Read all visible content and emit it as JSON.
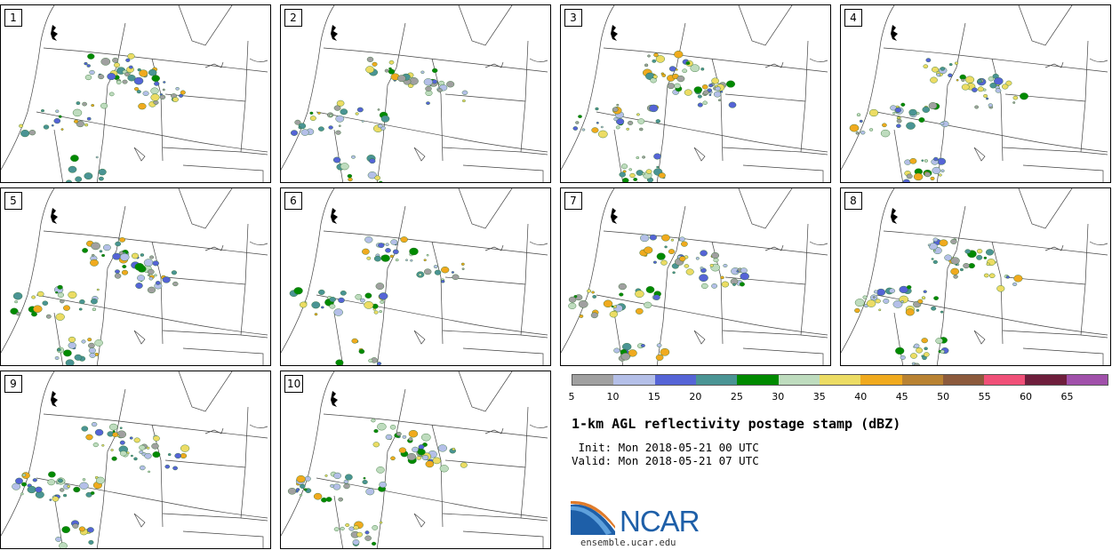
{
  "panels": [
    {
      "label": "1"
    },
    {
      "label": "2"
    },
    {
      "label": "3"
    },
    {
      "label": "4"
    },
    {
      "label": "5"
    },
    {
      "label": "6"
    },
    {
      "label": "7"
    },
    {
      "label": "8"
    },
    {
      "label": "9"
    },
    {
      "label": "10"
    }
  ],
  "colorbar": {
    "colors": [
      "#a0a0a0",
      "#b4bfe8",
      "#5564d6",
      "#4a9494",
      "#008a00",
      "#bedcbe",
      "#ecdc64",
      "#f0aa1e",
      "#b98232",
      "#8c5a3c",
      "#f05078",
      "#6e1e3c",
      "#a050aa"
    ],
    "ticks": [
      "5",
      "10",
      "15",
      "20",
      "25",
      "30",
      "35",
      "40",
      "45",
      "50",
      "55",
      "60",
      "65"
    ]
  },
  "title": "1-km AGL reflectivity postage stamp (dBZ)",
  "init": " Init: Mon 2018-05-21 00 UTC",
  "valid": "Valid: Mon 2018-05-21 07 UTC",
  "logo": {
    "text": "NCAR"
  },
  "site": "ensemble.ucar.edu"
}
